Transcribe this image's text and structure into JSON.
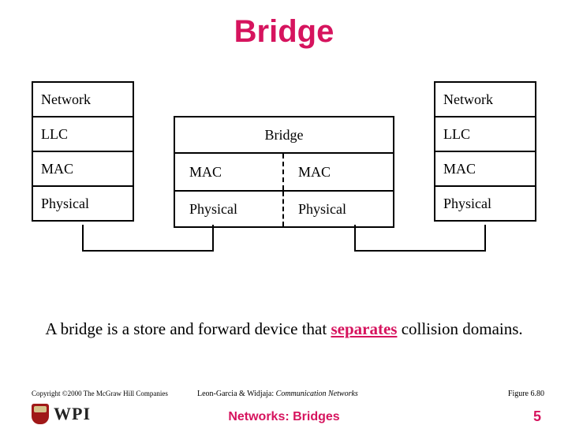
{
  "title": "Bridge",
  "left_stack": {
    "layers": [
      "Network",
      "LLC",
      "MAC",
      "Physical"
    ]
  },
  "right_stack": {
    "layers": [
      "Network",
      "LLC",
      "MAC",
      "Physical"
    ]
  },
  "bridge": {
    "label": "Bridge",
    "rows": [
      {
        "left": "MAC",
        "right": "MAC"
      },
      {
        "left": "Physical",
        "right": "Physical"
      }
    ]
  },
  "caption": {
    "pre": "A bridge is a store and forward device that ",
    "emph": "separates",
    "post": " collision domains."
  },
  "footer": {
    "copyright": "Copyright ©2000 The McGraw Hill Companies",
    "ref_authors": "Leon-Garcia & Widjaja: ",
    "ref_book": "Communication Networks",
    "figure": "Figure 6.80",
    "networks": "Networks: Bridges",
    "page": "5",
    "logo_text": "WPI"
  },
  "colors": {
    "accent": "#d6145e",
    "border": "#000000",
    "background": "#ffffff",
    "shield": "#a01818"
  },
  "connectors": {
    "stroke": "#000000",
    "stroke_width": 2,
    "paths": [
      "M105 182 L105 215 L270 215 L270 182",
      "M450 182 L450 215 L615 215 L615 182"
    ]
  }
}
